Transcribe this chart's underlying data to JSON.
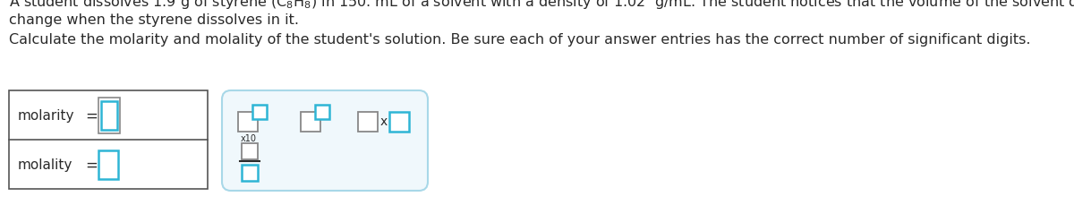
{
  "bg_color": "#ffffff",
  "text_color": "#2a2a2a",
  "line1": "A student dissolves 1.9 g of styrene $(\\mathrm{C_8H_8})$ in 150. mL of a solvent with a density of 1.02  g/mL. The student notices that the volume of the solvent does not",
  "line2": "change when the styrene dissolves in it.",
  "line3": "Calculate the molarity and molality of the student's solution. Be sure each of your answer entries has the correct number of significant digits.",
  "molarity_label": "molarity",
  "molality_label": "molality",
  "equals": "=",
  "box_border_gray": "#888888",
  "box_border_blue": "#2EB5D5",
  "box_border_dark_blue": "#1A8FB5",
  "right_panel_border": "#A8D8E8",
  "right_panel_fill": "#F0F8FC",
  "x10_label": "x10",
  "times_label": "x",
  "left_panel_border": "#555555",
  "left_panel_fill": "#ffffff",
  "text_fontsize": 11.5,
  "label_fontsize": 11.0
}
